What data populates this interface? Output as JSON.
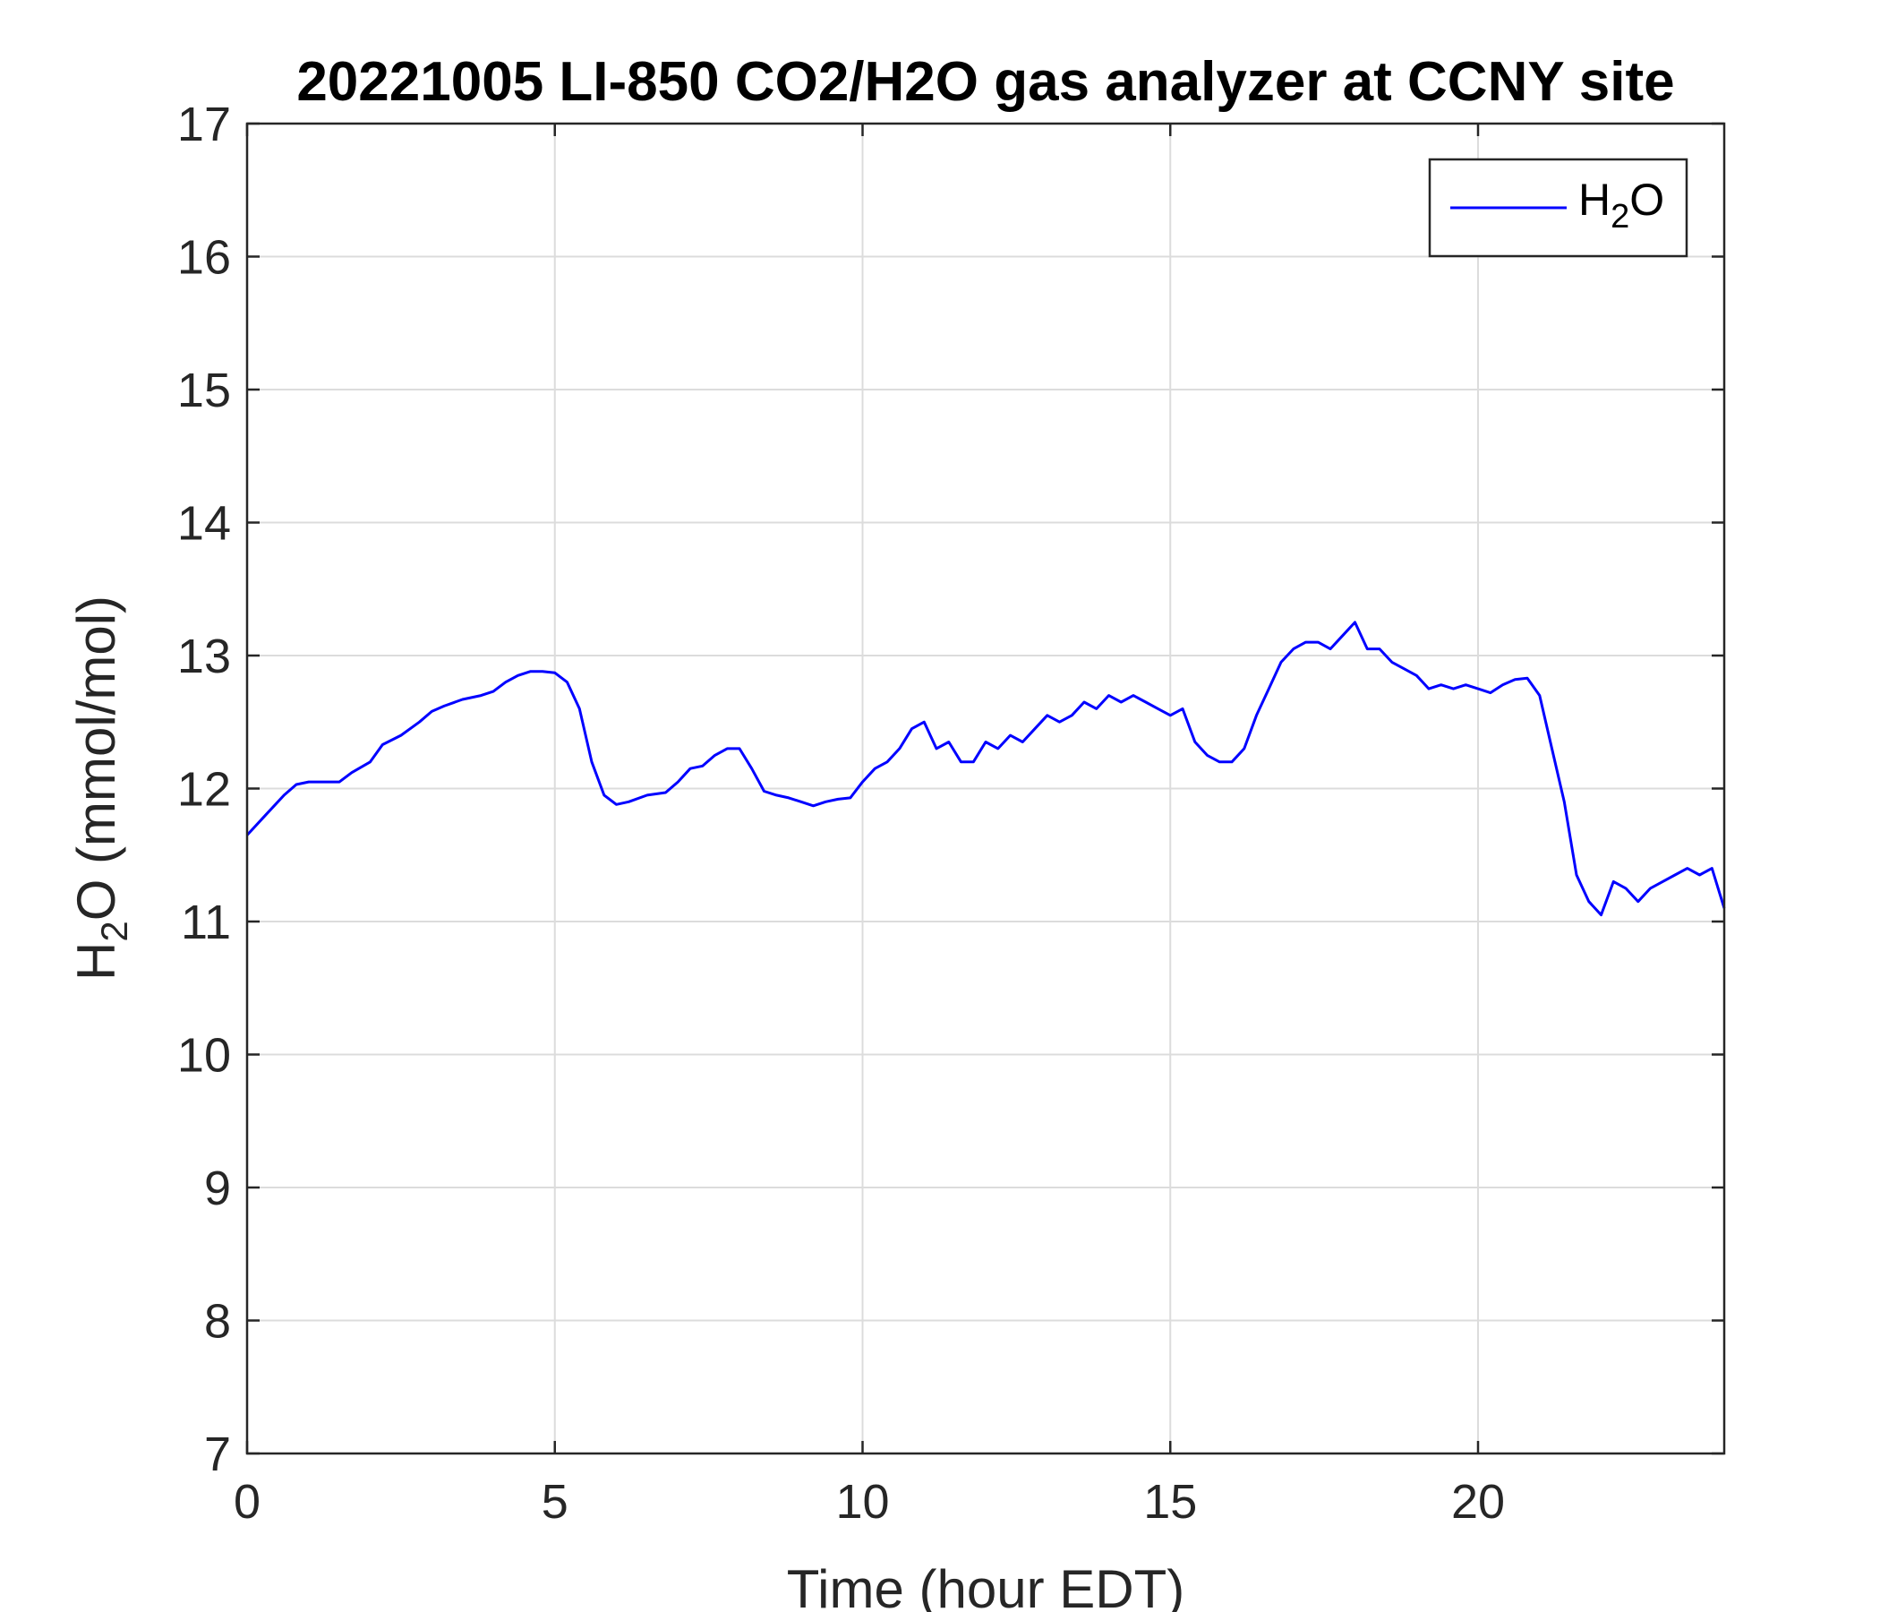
{
  "chart_data": {
    "type": "line",
    "title": "20221005 LI-850 CO2/H2O gas analyzer at CCNY site",
    "xlabel": "Time (hour EDT)",
    "ylabel": {
      "main": "H",
      "sub": "2",
      "rest": "O (mmol/mol)"
    },
    "xlim": [
      0,
      24
    ],
    "ylim": [
      7,
      17
    ],
    "xticks": [
      "0",
      "5",
      "10",
      "15",
      "20"
    ],
    "yticks": [
      "7",
      "8",
      "9",
      "10",
      "11",
      "12",
      "13",
      "14",
      "15",
      "16",
      "17"
    ],
    "grid": true,
    "legend": {
      "position": "top-right",
      "label": {
        "main": "H",
        "sub": "2",
        "rest": "O"
      }
    },
    "colors": {
      "series": "#0000ff",
      "grid": "#dcdcdc",
      "axes": "#262626"
    },
    "series": [
      {
        "name": "H2O",
        "x": [
          0,
          0.3,
          0.6,
          0.8,
          1.0,
          1.3,
          1.5,
          1.7,
          2.0,
          2.2,
          2.5,
          2.8,
          3.0,
          3.2,
          3.5,
          3.8,
          4.0,
          4.2,
          4.4,
          4.6,
          4.8,
          5.0,
          5.2,
          5.4,
          5.6,
          5.8,
          6.0,
          6.2,
          6.5,
          6.8,
          7.0,
          7.2,
          7.4,
          7.6,
          7.8,
          8.0,
          8.2,
          8.4,
          8.6,
          8.8,
          9.0,
          9.2,
          9.4,
          9.6,
          9.8,
          10.0,
          10.2,
          10.4,
          10.6,
          10.8,
          11.0,
          11.2,
          11.4,
          11.6,
          11.8,
          12.0,
          12.2,
          12.4,
          12.6,
          12.8,
          13.0,
          13.2,
          13.4,
          13.6,
          13.8,
          14.0,
          14.2,
          14.4,
          14.6,
          14.8,
          15.0,
          15.2,
          15.4,
          15.6,
          15.8,
          16.0,
          16.2,
          16.4,
          16.6,
          16.8,
          17.0,
          17.2,
          17.4,
          17.6,
          17.8,
          18.0,
          18.2,
          18.4,
          18.6,
          18.8,
          19.0,
          19.2,
          19.4,
          19.6,
          19.8,
          20.0,
          20.2,
          20.4,
          20.6,
          20.8,
          21.0,
          21.2,
          21.4,
          21.6,
          21.8,
          22.0,
          22.2,
          22.4,
          22.6,
          22.8,
          23.0,
          23.2,
          23.4,
          23.6,
          23.8,
          24.0
        ],
        "values": [
          11.65,
          11.8,
          11.95,
          12.03,
          12.05,
          12.05,
          12.05,
          12.12,
          12.2,
          12.33,
          12.4,
          12.5,
          12.58,
          12.62,
          12.67,
          12.7,
          12.73,
          12.8,
          12.85,
          12.88,
          12.88,
          12.87,
          12.8,
          12.6,
          12.2,
          11.95,
          11.88,
          11.9,
          11.95,
          11.97,
          12.05,
          12.15,
          12.17,
          12.25,
          12.3,
          12.3,
          12.15,
          11.98,
          11.95,
          11.93,
          11.9,
          11.87,
          11.9,
          11.92,
          11.93,
          12.05,
          12.15,
          12.2,
          12.3,
          12.45,
          12.5,
          12.3,
          12.35,
          12.2,
          12.2,
          12.35,
          12.3,
          12.4,
          12.35,
          12.45,
          12.55,
          12.5,
          12.55,
          12.65,
          12.6,
          12.7,
          12.65,
          12.7,
          12.65,
          12.6,
          12.55,
          12.6,
          12.35,
          12.25,
          12.2,
          12.2,
          12.3,
          12.55,
          12.75,
          12.95,
          13.05,
          13.1,
          13.1,
          13.05,
          13.15,
          13.25,
          13.05,
          13.05,
          12.95,
          12.9,
          12.85,
          12.75,
          12.78,
          12.75,
          12.78,
          12.75,
          12.72,
          12.78,
          12.82,
          12.83,
          12.7,
          12.3,
          11.9,
          11.35,
          11.15,
          11.05,
          11.3,
          11.25,
          11.15,
          11.25,
          11.3,
          11.35,
          11.4,
          11.35,
          11.4,
          11.1
        ]
      }
    ]
  }
}
